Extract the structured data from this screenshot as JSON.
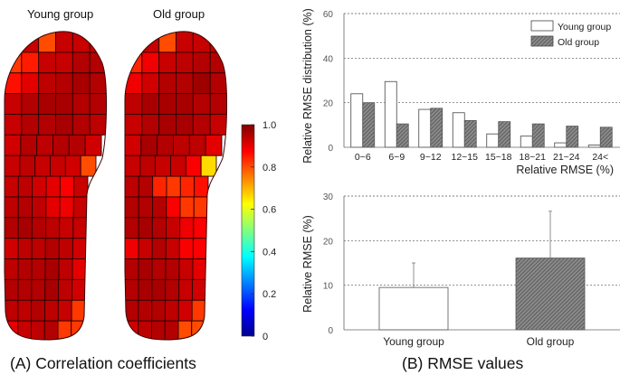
{
  "panel_a": {
    "caption": "(A) Correlation coefficients",
    "young_title": "Young group",
    "old_title": "Old group",
    "colorbar": {
      "ticks": [
        "1.0",
        "0.8",
        "0.6",
        "0.4",
        "0.2",
        "0"
      ],
      "tick_values": [
        1.0,
        0.8,
        0.6,
        0.4,
        0.2,
        0.0
      ],
      "range": [
        0,
        1
      ],
      "colormap": "jet"
    }
  },
  "panel_b": {
    "caption": "(B) RMSE values"
  },
  "chart_data": [
    {
      "type": "heatmap",
      "title": "Young group",
      "description": "Insole sensor grid of correlation coefficients (rows toe→heel, columns medial→lateral)",
      "colorbar_range": [
        0,
        1
      ],
      "grid": [
        [
          0.93,
          0.93,
          0.8,
          0.93,
          0.93,
          0.93
        ],
        [
          0.82,
          0.85,
          0.93,
          0.93,
          0.95,
          0.95
        ],
        [
          0.86,
          0.9,
          0.94,
          0.95,
          0.96,
          0.95
        ],
        [
          0.93,
          0.95,
          0.96,
          0.96,
          0.95,
          0.95
        ],
        [
          0.93,
          0.95,
          0.95,
          0.96,
          0.95,
          0.94
        ],
        [
          0.92,
          0.95,
          0.94,
          0.95,
          0.95,
          0.92
        ],
        [
          0.93,
          0.94,
          0.93,
          0.93,
          0.92,
          0.8
        ],
        [
          0.93,
          0.94,
          0.92,
          0.9,
          0.88,
          0.93
        ],
        [
          0.94,
          0.95,
          0.94,
          0.9,
          0.89,
          0.93
        ],
        [
          0.95,
          0.96,
          0.95,
          0.94,
          0.93,
          0.93
        ],
        [
          0.92,
          0.94,
          0.94,
          0.95,
          0.94,
          0.92
        ],
        [
          0.94,
          0.95,
          0.95,
          0.96,
          0.94,
          0.9
        ],
        [
          0.95,
          0.95,
          0.95,
          0.96,
          0.94,
          0.92
        ],
        [
          0.94,
          0.94,
          0.95,
          0.94,
          0.93,
          0.82
        ],
        [
          0.9,
          0.93,
          0.94,
          0.95,
          0.82,
          0.82
        ]
      ]
    },
    {
      "type": "heatmap",
      "title": "Old group",
      "description": "Insole sensor grid of correlation coefficients (rows toe→heel, columns medial→lateral)",
      "colorbar_range": [
        0,
        1
      ],
      "grid": [
        [
          0.93,
          0.93,
          0.8,
          0.93,
          0.93,
          0.93
        ],
        [
          0.84,
          0.89,
          0.93,
          0.94,
          0.95,
          0.95
        ],
        [
          0.89,
          0.92,
          0.95,
          0.95,
          0.97,
          0.95
        ],
        [
          0.94,
          0.96,
          0.96,
          0.96,
          0.95,
          0.95
        ],
        [
          0.93,
          0.95,
          0.96,
          0.96,
          0.95,
          0.93
        ],
        [
          0.92,
          0.96,
          0.95,
          0.94,
          0.94,
          0.9
        ],
        [
          0.93,
          0.94,
          0.93,
          0.93,
          0.88,
          0.66
        ],
        [
          0.94,
          0.95,
          0.84,
          0.82,
          0.84,
          0.86
        ],
        [
          0.95,
          0.95,
          0.95,
          0.88,
          0.82,
          0.82
        ],
        [
          0.95,
          0.96,
          0.95,
          0.93,
          0.89,
          0.88
        ],
        [
          0.89,
          0.93,
          0.95,
          0.93,
          0.88,
          0.88
        ],
        [
          0.95,
          0.96,
          0.95,
          0.95,
          0.93,
          0.9
        ],
        [
          0.95,
          0.96,
          0.96,
          0.95,
          0.93,
          0.92
        ],
        [
          0.95,
          0.95,
          0.95,
          0.94,
          0.92,
          0.82
        ],
        [
          0.92,
          0.94,
          0.95,
          0.95,
          0.8,
          0.8
        ]
      ]
    },
    {
      "type": "bar",
      "title": "",
      "xlabel": "Relative RMSE (%)",
      "ylabel": "Relative RMSE distribution (%)",
      "ylim": [
        0,
        60
      ],
      "yticks": [
        0,
        20,
        40,
        60
      ],
      "grid": true,
      "legend": "top-right",
      "categories": [
        "0~6",
        "6~9",
        "9~12",
        "12~15",
        "15~18",
        "18~21",
        "21~24",
        "24<"
      ],
      "series": [
        {
          "name": "Young group",
          "fill": "white",
          "values": [
            24,
            29.5,
            17,
            15.5,
            6,
            5,
            2,
            1
          ]
        },
        {
          "name": "Old group",
          "fill": "hatched",
          "values": [
            20,
            10.5,
            17.5,
            12,
            11.5,
            10.5,
            9.5,
            9
          ]
        }
      ]
    },
    {
      "type": "bar",
      "title": "",
      "xlabel": "",
      "ylabel": "Relative RMSE (%)",
      "ylim": [
        0,
        30
      ],
      "yticks": [
        0,
        10,
        20,
        30
      ],
      "grid": true,
      "categories": [
        "Young group",
        "Old group"
      ],
      "series": [
        {
          "name": "Relative RMSE",
          "values": [
            9.5,
            16.1
          ],
          "error_upper": [
            5.5,
            10.5
          ],
          "fills": [
            "white",
            "hatched"
          ]
        }
      ]
    }
  ]
}
